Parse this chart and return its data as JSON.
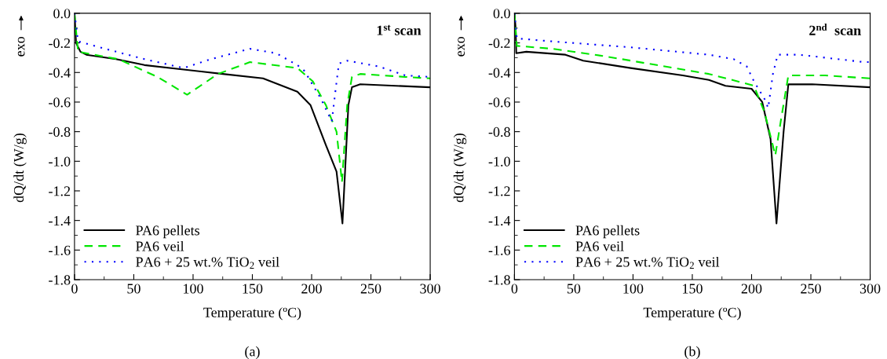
{
  "chart_data": [
    {
      "type": "line",
      "title": "1$^{st}$ scan",
      "xlabel": "Temperature (ºC)",
      "ylabel": "dQ/dt (W/g)",
      "annotations": [
        "exo",
        "(a)"
      ],
      "xlim": [
        0,
        300
      ],
      "xticks": [
        0,
        50,
        100,
        150,
        200,
        250,
        300
      ],
      "ylim": [
        -1.8,
        0.0
      ],
      "yticks": [
        {
          "value": 0.0,
          "label": "0.0"
        },
        {
          "value": -0.2,
          "label": "-0.2"
        },
        {
          "value": -0.4,
          "label": "-0.4"
        },
        {
          "value": -0.6,
          "label": "-0.6"
        },
        {
          "value": -0.8,
          "label": "-0.8"
        },
        {
          "value": -1.0,
          "label": "-1.0"
        },
        {
          "value": -1.2,
          "label": "-1.2"
        },
        {
          "value": -1.4,
          "label": "-1.4"
        },
        {
          "value": -1.6,
          "label": "-1.6"
        },
        {
          "value": -1.8,
          "label": "-1.8"
        }
      ],
      "grid": false,
      "legend": "bottom left",
      "marker": "none",
      "series": [
        {
          "name": "PA6 pellets",
          "color": "#000000",
          "line_style": "solid",
          "x": [
            0,
            1.3,
            5,
            10,
            35,
            59,
            92,
            125,
            159,
            188,
            199,
            212,
            221,
            226,
            231,
            234,
            241,
            300
          ],
          "values": [
            0.0,
            -0.2,
            -0.26,
            -0.28,
            -0.31,
            -0.35,
            -0.38,
            -0.41,
            -0.44,
            -0.53,
            -0.62,
            -0.89,
            -1.07,
            -1.42,
            -0.62,
            -0.5,
            -0.48,
            -0.5
          ]
        },
        {
          "name": "PA6 veil",
          "color": "#00e600",
          "line_style": "dashed",
          "x": [
            0,
            0.5,
            3,
            37,
            70,
            95,
            121,
            148,
            188,
            201,
            212,
            221,
            225.6,
            230,
            234,
            241,
            279,
            300
          ],
          "values": [
            0.0,
            -0.05,
            -0.26,
            -0.31,
            -0.43,
            -0.55,
            -0.41,
            -0.33,
            -0.37,
            -0.46,
            -0.62,
            -0.8,
            -1.14,
            -0.62,
            -0.43,
            -0.41,
            -0.43,
            -0.44
          ]
        },
        {
          "name": "PA6 + 25 wt.% TiO$_{2}$ veil",
          "color": "#0000ff",
          "line_style": "dotted",
          "x": [
            0,
            3,
            26,
            59,
            92,
            115,
            148,
            170,
            188,
            194,
            208,
            217,
            220,
            223,
            230,
            257,
            279,
            300
          ],
          "values": [
            0.0,
            -0.19,
            -0.24,
            -0.31,
            -0.37,
            -0.31,
            -0.24,
            -0.27,
            -0.35,
            -0.39,
            -0.58,
            -0.73,
            -0.53,
            -0.34,
            -0.32,
            -0.36,
            -0.42,
            -0.43
          ]
        }
      ]
    },
    {
      "type": "line",
      "title": "2$^{nd}$  scan",
      "xlabel": "Temperature (ºC)",
      "ylabel": "dQ/dt (W/g)",
      "annotations": [
        "exo",
        "(b)"
      ],
      "xlim": [
        0,
        300
      ],
      "xticks": [
        0,
        50,
        100,
        150,
        200,
        250,
        300
      ],
      "ylim": [
        -1.8,
        0.0
      ],
      "yticks": [
        {
          "value": 0.0,
          "label": "0.0"
        },
        {
          "value": -0.2,
          "label": "-0.2"
        },
        {
          "value": -0.4,
          "label": "-0.4"
        },
        {
          "value": -0.6,
          "label": "-0.6"
        },
        {
          "value": -0.8,
          "label": "-0.8"
        },
        {
          "value": -1.0,
          "label": "-1.0"
        },
        {
          "value": -1.2,
          "label": "-1.2"
        },
        {
          "value": -1.4,
          "label": "-1.4"
        },
        {
          "value": -1.6,
          "label": "-1.6"
        },
        {
          "value": -1.8,
          "label": "-1.8"
        }
      ],
      "grid": false,
      "legend": "bottom left",
      "marker": "none",
      "series": [
        {
          "name": "PA6 pellets",
          "color": "#000000",
          "line_style": "solid",
          "x": [
            0,
            1,
            1.5,
            10,
            43,
            58,
            98,
            142,
            164,
            178,
            200,
            209,
            216,
            221,
            227,
            231,
            251,
            300
          ],
          "values": [
            0.0,
            -0.1,
            -0.27,
            -0.26,
            -0.28,
            -0.32,
            -0.37,
            -0.42,
            -0.45,
            -0.49,
            -0.51,
            -0.6,
            -0.85,
            -1.42,
            -0.8,
            -0.48,
            -0.48,
            -0.5
          ]
        },
        {
          "name": "PA6 veil",
          "color": "#00e600",
          "line_style": "dashed",
          "x": [
            0,
            2,
            32,
            76,
            120,
            164,
            193,
            202,
            211,
            220,
            225,
            231,
            262,
            300
          ],
          "values": [
            0.0,
            -0.22,
            -0.24,
            -0.29,
            -0.35,
            -0.41,
            -0.47,
            -0.49,
            -0.67,
            -0.96,
            -0.71,
            -0.42,
            -0.42,
            -0.44
          ]
        },
        {
          "name": "PA6 + 25 wt.% TiO$_{2}$ veil",
          "color": "#0000ff",
          "line_style": "dotted",
          "x": [
            0,
            2,
            32,
            98,
            164,
            185,
            196,
            202,
            211,
            214,
            218,
            222,
            240,
            295,
            300
          ],
          "values": [
            0.0,
            -0.17,
            -0.19,
            -0.23,
            -0.28,
            -0.31,
            -0.36,
            -0.46,
            -0.58,
            -0.64,
            -0.41,
            -0.28,
            -0.28,
            -0.33,
            -0.33
          ]
        }
      ]
    }
  ]
}
